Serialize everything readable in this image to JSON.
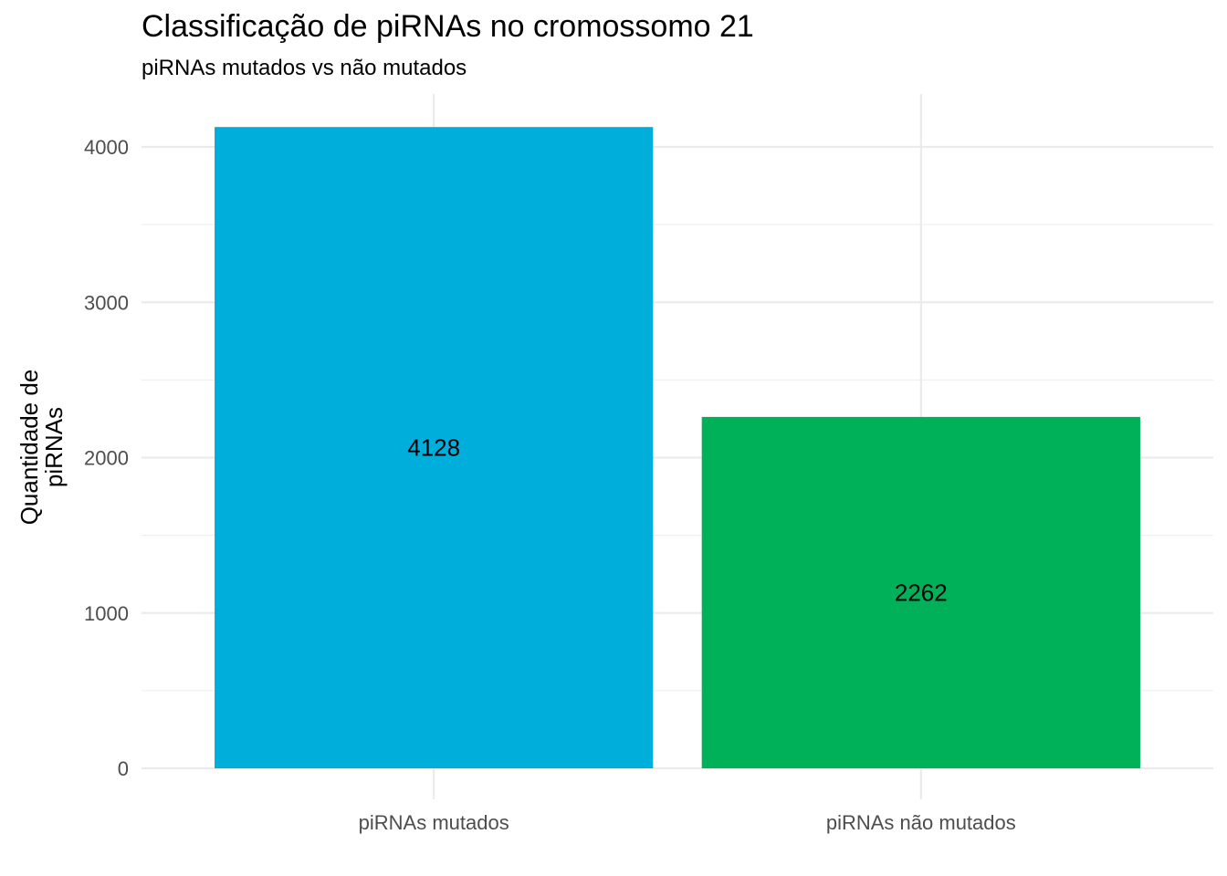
{
  "chart_data": {
    "type": "bar",
    "title": "Classificação de piRNAs no cromossomo 21",
    "subtitle": "piRNAs mutados vs não mutados",
    "xlabel": "",
    "ylabel_lines": [
      "Quantidade de",
      "piRNAs"
    ],
    "categories": [
      "piRNAs mutados",
      "piRNAs não mutados"
    ],
    "values": [
      4128,
      2262
    ],
    "data_labels": [
      "4128",
      "2262"
    ],
    "colors": [
      "#00AEDB",
      "#00B159"
    ],
    "ylim": [
      0,
      4300
    ],
    "yticks": [
      0,
      1000,
      2000,
      3000,
      4000
    ],
    "ytick_labels": [
      "0",
      "1000",
      "2000",
      "3000",
      "4000"
    ],
    "grid": true,
    "legend": "none"
  }
}
